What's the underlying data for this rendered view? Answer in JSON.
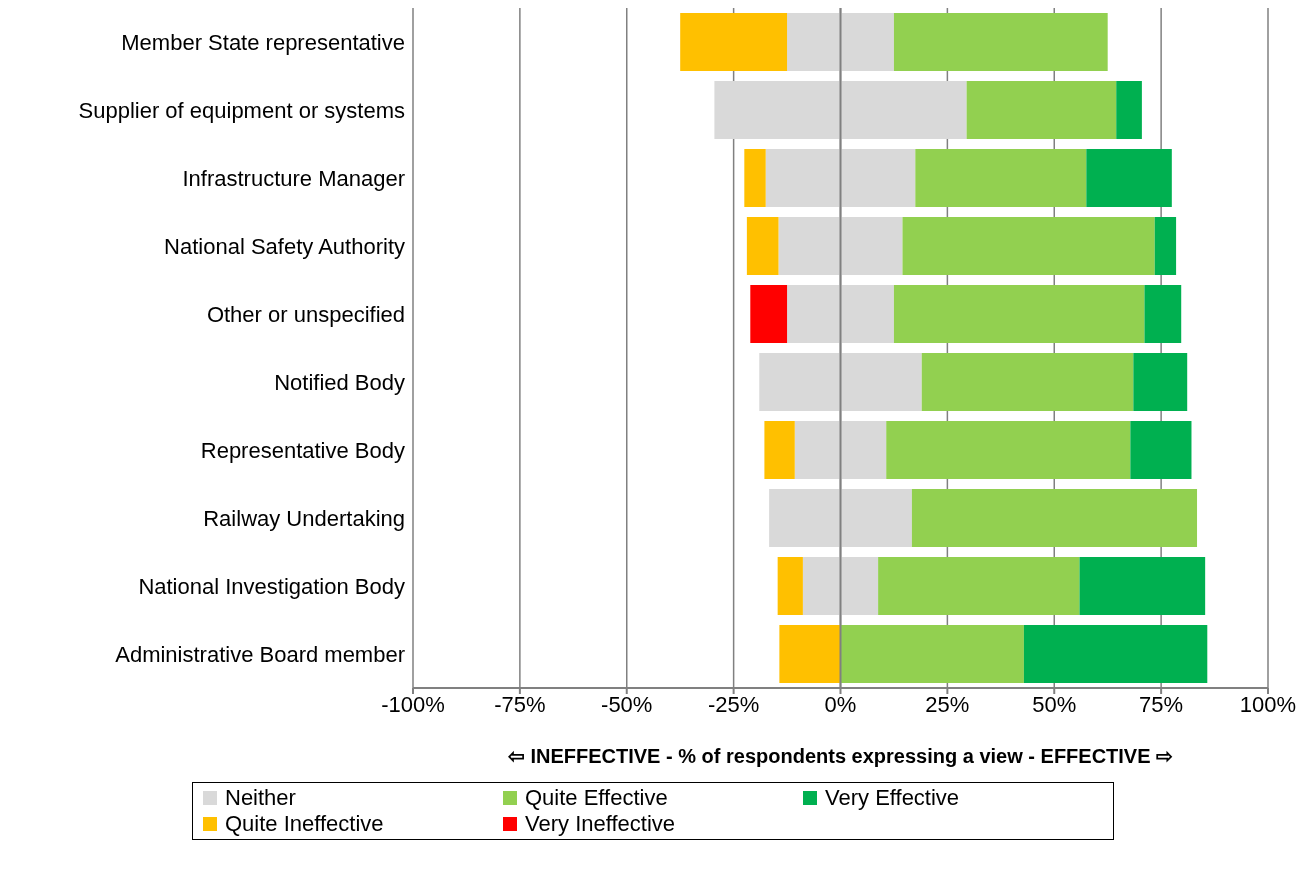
{
  "chart_data": {
    "type": "bar",
    "orientation": "horizontal",
    "stacked": true,
    "xlabel": "⇦ INEFFECTIVE - % of respondents expressing a view - EFFECTIVE ⇨",
    "categories": [
      "Member State representative",
      "Supplier of equipment or systems",
      "Infrastructure Manager",
      "National Safety Authority",
      "Other or unspecified",
      "Notified Body",
      "Representative Body",
      "Railway Undertaking",
      "National Investigation Body",
      "Administrative Board member"
    ],
    "series": [
      {
        "name": "Neither",
        "color": "#d9d9d9",
        "values": [
          12.5,
          29.5,
          17.5,
          14.5,
          12.5,
          19,
          10.7,
          16.7,
          8.8,
          null
        ]
      },
      {
        "name": "Quite Effective",
        "color": "#92d050",
        "values": [
          50,
          35,
          40,
          59,
          58.6,
          49.5,
          57.1,
          66.7,
          47.1,
          42.9
        ]
      },
      {
        "name": "Very Effective",
        "color": "#00b050",
        "values": [
          null,
          6,
          20,
          5,
          8.6,
          12.6,
          14.3,
          null,
          29.4,
          42.9
        ]
      },
      {
        "color": "#d9d9d9",
        "values": [
          -12.5,
          -29.5,
          -17.5,
          -14.5,
          -12.5,
          -19,
          -10.7,
          -16.7,
          -8.8,
          null
        ]
      },
      {
        "name": "Quite Ineffective",
        "color": "#ffc000",
        "values": [
          -25,
          null,
          -5,
          -7.4,
          null,
          null,
          -7.1,
          null,
          -5.9,
          -14.3
        ]
      },
      {
        "name": "Very Ineffective",
        "color": "#ff0000",
        "values": [
          null,
          null,
          null,
          null,
          -8.6,
          null,
          null,
          null,
          null,
          null
        ]
      }
    ],
    "xlim": [
      -100,
      100
    ],
    "xticks": [
      {
        "value": -100,
        "label": "-100%"
      },
      {
        "value": -75,
        "label": "-75%"
      },
      {
        "value": -50,
        "label": "-50%"
      },
      {
        "value": -25,
        "label": "-25%"
      },
      {
        "value": 0,
        "label": "0%"
      },
      {
        "value": 25,
        "label": "25%"
      },
      {
        "value": 50,
        "label": "50%"
      },
      {
        "value": 75,
        "label": "75%"
      },
      {
        "value": 100,
        "label": "100%"
      }
    ],
    "ref_lines": [
      {
        "axis": "x",
        "value": 0,
        "color": "#808080"
      }
    ],
    "grid": "x",
    "legend": "bottom"
  }
}
